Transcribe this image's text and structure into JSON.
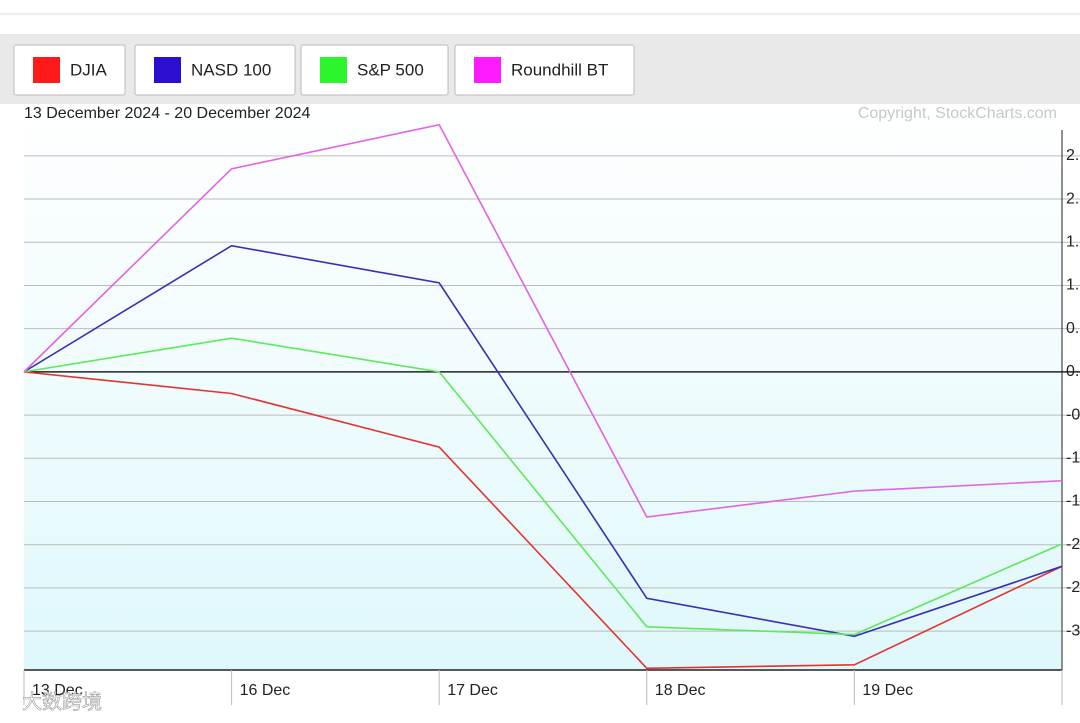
{
  "chart_data": {
    "type": "line",
    "subtitle": "13 December 2024 - 20 December 2024",
    "copyright": "Copyright, StockCharts.com",
    "watermark": "大数跨境",
    "categories": [
      "13 Dec",
      "16 Dec",
      "17 Dec",
      "18 Dec",
      "19 Dec",
      null
    ],
    "series": [
      {
        "name": "DJIA",
        "color": "#e5322d",
        "swatch": "#ff1a1a",
        "values": [
          0,
          -0.25,
          -0.87,
          -3.43,
          -3.39,
          -2.25
        ]
      },
      {
        "name": "NASD 100",
        "color": "#3b2db5",
        "swatch": "#2a0fd0",
        "values": [
          0,
          1.46,
          1.03,
          -2.62,
          -3.06,
          -2.25
        ]
      },
      {
        "name": "S&P 500",
        "color": "#5fe85a",
        "swatch": "#2cf52c",
        "values": [
          0,
          0.39,
          0,
          -2.95,
          -3.04,
          -1.99
        ]
      },
      {
        "name": "Roundhill BT",
        "color": "#e462e4",
        "swatch": "#ff1aff",
        "values": [
          0,
          2.35,
          2.86,
          -1.68,
          -1.38,
          -1.26
        ]
      }
    ],
    "ylim": [
      -3.45,
      3.1
    ],
    "yticks": [
      {
        "value": 2.5,
        "label": "2."
      },
      {
        "value": 2,
        "label": "2."
      },
      {
        "value": 1.5,
        "label": "1."
      },
      {
        "value": 1,
        "label": "1."
      },
      {
        "value": 0.5,
        "label": "0."
      },
      {
        "value": 0,
        "label": "0."
      },
      {
        "value": -0.5,
        "label": "-0"
      },
      {
        "value": -1,
        "label": "-1"
      },
      {
        "value": -1.5,
        "label": "-1"
      },
      {
        "value": -2,
        "label": "-2"
      },
      {
        "value": -2.5,
        "label": "-2"
      },
      {
        "value": -3,
        "label": "-3"
      }
    ],
    "grid": true
  }
}
